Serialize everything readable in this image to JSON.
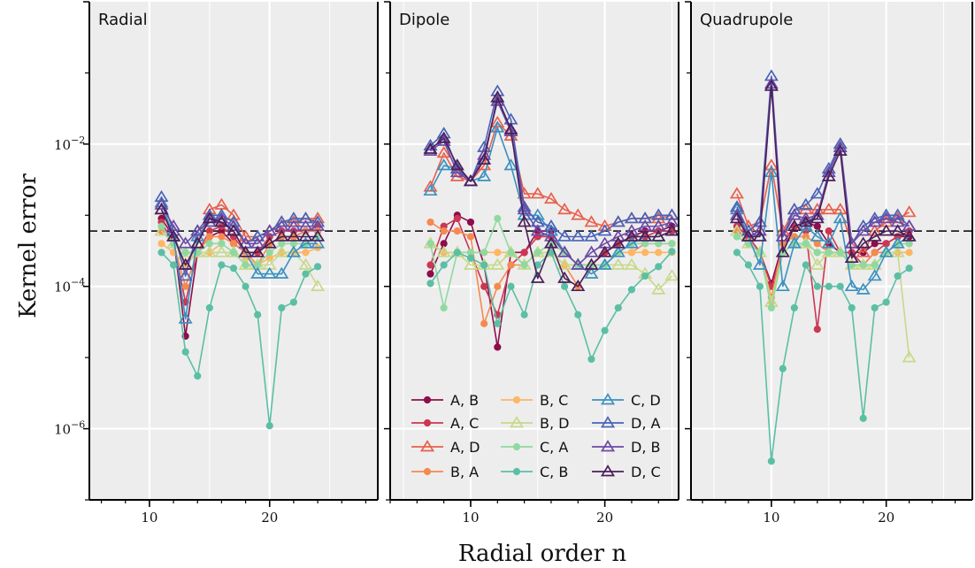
{
  "chart_data": {
    "type": "line",
    "ylabel": "Kernel error",
    "xlabel": "Radial order n",
    "y_scale": "log",
    "ylim": [
      1e-07,
      1
    ],
    "y_ticks": [
      {
        "value": 1e-06,
        "label": "10−6"
      },
      {
        "value": 0.0001,
        "label": "10−4"
      },
      {
        "value": 0.01,
        "label": "10−2"
      }
    ],
    "reference_line": 0.0006,
    "grid": true,
    "legend_position": "bottom-center of middle panel",
    "series_styles": [
      {
        "name": "A, B",
        "color": "#8e0d4b",
        "marker": "circle"
      },
      {
        "name": "A, C",
        "color": "#cc3752",
        "marker": "circle"
      },
      {
        "name": "A, D",
        "color": "#e8604c",
        "marker": "triangle"
      },
      {
        "name": "B, A",
        "color": "#f58a4f",
        "marker": "circle"
      },
      {
        "name": "B, C",
        "color": "#fdb662",
        "marker": "circle"
      },
      {
        "name": "B, D",
        "color": "#c6d98a",
        "marker": "triangle"
      },
      {
        "name": "C, A",
        "color": "#8fd9a0",
        "marker": "circle"
      },
      {
        "name": "C, B",
        "color": "#5bbfa4",
        "marker": "circle"
      },
      {
        "name": "C, D",
        "color": "#3b91c0",
        "marker": "triangle"
      },
      {
        "name": "D, A",
        "color": "#4a62b8",
        "marker": "triangle"
      },
      {
        "name": "D, B",
        "color": "#6c4aa6",
        "marker": "triangle"
      },
      {
        "name": "D, C",
        "color": "#4b1e58",
        "marker": "triangle"
      }
    ],
    "panels": [
      {
        "title": "Radial",
        "xlim": [
          5,
          29
        ],
        "x_ticks": [
          10,
          20
        ],
        "x": [
          11,
          12,
          13,
          14,
          15,
          16,
          17,
          18,
          19,
          20,
          21,
          22,
          23,
          24
        ],
        "series": [
          {
            "name": "A, B",
            "values": [
              0.0009,
              0.0005,
              2e-05,
              0.0003,
              0.0005,
              0.0006,
              0.0004,
              0.0003,
              0.0003,
              0.0004,
              0.0005,
              0.0005,
              0.0006,
              0.0006
            ]
          },
          {
            "name": "A, C",
            "values": [
              0.0008,
              0.0004,
              6e-05,
              0.0003,
              0.0006,
              0.0007,
              0.0005,
              0.0003,
              0.0003,
              0.0005,
              0.0006,
              0.0006,
              0.0006,
              0.0007
            ]
          },
          {
            "name": "A, D",
            "values": [
              0.0012,
              0.0005,
              0.0002,
              0.0004,
              0.0012,
              0.0014,
              0.001,
              0.0005,
              0.0005,
              0.0006,
              0.0008,
              0.0008,
              0.0009,
              0.0009
            ]
          },
          {
            "name": "B, A",
            "values": [
              0.0006,
              0.0004,
              0.0001,
              0.0003,
              0.0005,
              0.0005,
              0.0004,
              0.0003,
              0.0002,
              0.0004,
              0.0005,
              0.0005,
              0.0006,
              0.0006
            ]
          },
          {
            "name": "B, C",
            "values": [
              0.0004,
              0.0003,
              0.0002,
              0.0003,
              0.0003,
              0.0004,
              0.0003,
              0.00025,
              0.0002,
              0.00025,
              0.0003,
              0.0003,
              0.0003,
              0.00035
            ]
          },
          {
            "name": "B, D",
            "values": [
              0.0006,
              0.0004,
              0.0003,
              0.0003,
              0.0003,
              0.0003,
              0.0003,
              0.0002,
              0.0002,
              0.0002,
              0.0003,
              0.0003,
              0.0002,
              0.0001
            ]
          },
          {
            "name": "C, A",
            "values": [
              0.0007,
              0.0004,
              0.0003,
              0.0003,
              0.0004,
              0.0004,
              0.0003,
              0.0002,
              0.0002,
              0.0003,
              0.0004,
              0.0004,
              0.0004,
              0.0005
            ]
          },
          {
            "name": "C, B",
            "values": [
              0.0003,
              0.0002,
              1.2e-05,
              5.5e-06,
              5e-05,
              0.0002,
              0.00018,
              0.0001,
              4e-05,
              1.1e-06,
              5e-05,
              6e-05,
              0.00015,
              0.00019
            ]
          },
          {
            "name": "C, D",
            "values": [
              0.0015,
              0.0005,
              3.5e-05,
              0.0005,
              0.0008,
              0.0008,
              0.0006,
              0.0003,
              0.00015,
              0.00015,
              0.00015,
              0.0003,
              0.0004,
              0.0004
            ]
          },
          {
            "name": "D, A",
            "values": [
              0.0018,
              0.0006,
              0.00014,
              0.0006,
              0.001,
              0.001,
              0.0008,
              0.0004,
              0.0005,
              0.0006,
              0.0008,
              0.0009,
              0.0009,
              0.0008
            ]
          },
          {
            "name": "D, B",
            "values": [
              0.0014,
              0.0007,
              0.0004,
              0.0006,
              0.0008,
              0.0009,
              0.0007,
              0.0004,
              0.0004,
              0.0006,
              0.0007,
              0.0007,
              0.0007,
              0.0007
            ]
          },
          {
            "name": "D, C",
            "values": [
              0.0012,
              0.0005,
              0.0002,
              0.0004,
              0.0009,
              0.0008,
              0.0006,
              0.0003,
              0.0003,
              0.0004,
              0.0005,
              0.0005,
              0.0005,
              0.0005
            ]
          }
        ]
      },
      {
        "title": "Dipole",
        "xlim": [
          4,
          25.5
        ],
        "x_ticks": [
          10,
          20
        ],
        "x": [
          7,
          8,
          9,
          10,
          11,
          12,
          13,
          14,
          15,
          16,
          17,
          18,
          19,
          20,
          21,
          22,
          23,
          24,
          25
        ],
        "series": [
          {
            "name": "A, B",
            "values": [
              0.00015,
              0.0004,
              0.001,
              0.0008,
              0.0002,
              1.4e-05,
              0.0003,
              0.0003,
              0.0006,
              0.0006,
              0.0003,
              0.0002,
              0.0002,
              0.0003,
              0.0004,
              0.0005,
              0.0006,
              0.0006,
              0.0007
            ]
          },
          {
            "name": "A, C",
            "values": [
              0.0002,
              0.0007,
              0.0009,
              0.0003,
              0.0001,
              4e-05,
              0.0002,
              0.0003,
              0.0005,
              0.0005,
              0.0003,
              0.0002,
              0.0002,
              0.0003,
              0.0004,
              0.0005,
              0.0005,
              0.0006,
              0.0006
            ]
          },
          {
            "name": "A, D",
            "values": [
              0.0025,
              0.0075,
              0.0035,
              0.003,
              0.005,
              0.02,
              0.013,
              0.002,
              0.002,
              0.0017,
              0.0012,
              0.001,
              0.0008,
              0.0007,
              0.0008,
              0.0009,
              0.0009,
              0.0009,
              0.001
            ]
          },
          {
            "name": "B, A",
            "values": [
              0.0008,
              0.0006,
              0.0006,
              0.0005,
              3e-05,
              0.0001,
              0.0002,
              0.0002,
              0.0003,
              0.0003,
              0.0002,
              0.0001,
              0.0002,
              0.0002,
              0.0003,
              0.0003,
              0.0004,
              0.0004,
              0.0004
            ]
          },
          {
            "name": "B, C",
            "values": [
              0.0004,
              0.0003,
              0.0003,
              0.0003,
              0.0003,
              0.0003,
              0.0003,
              0.0002,
              0.0003,
              0.0003,
              0.0002,
              0.0002,
              0.0002,
              0.0002,
              0.0003,
              0.0003,
              0.0003,
              0.0003,
              0.0003
            ]
          },
          {
            "name": "B, D",
            "values": [
              0.0004,
              0.0003,
              0.0003,
              0.0002,
              0.0002,
              0.0002,
              0.0003,
              0.0002,
              0.0003,
              0.0003,
              0.0002,
              0.0002,
              0.0002,
              0.0002,
              0.0002,
              0.0002,
              0.00015,
              9e-05,
              0.00014
            ]
          },
          {
            "name": "C, A",
            "values": [
              0.0004,
              5e-05,
              0.0003,
              0.0003,
              0.0003,
              0.0009,
              0.0003,
              0.0002,
              0.0003,
              0.0004,
              0.0003,
              0.0002,
              0.0002,
              0.0002,
              0.0003,
              0.0004,
              0.0004,
              0.0004,
              0.0004
            ]
          },
          {
            "name": "C, B",
            "values": [
              0.00011,
              0.0002,
              0.0003,
              0.00025,
              0.0002,
              3e-05,
              0.0001,
              4e-05,
              0.0002,
              0.0003,
              0.0001,
              4e-05,
              9.5e-06,
              2.4e-05,
              5e-05,
              9e-05,
              0.00014,
              0.00019,
              0.00031
            ]
          },
          {
            "name": "C, D",
            "values": [
              0.0022,
              0.005,
              0.0045,
              0.003,
              0.0035,
              0.017,
              0.005,
              0.001,
              0.001,
              0.0006,
              0.0003,
              0.0002,
              0.00015,
              0.0002,
              0.0003,
              0.0004,
              0.0005,
              0.0005,
              0.0006
            ]
          },
          {
            "name": "D, A",
            "values": [
              0.0095,
              0.014,
              0.0045,
              0.003,
              0.009,
              0.055,
              0.022,
              0.0013,
              0.0008,
              0.0007,
              0.0005,
              0.0005,
              0.0005,
              0.0006,
              0.0008,
              0.0009,
              0.0009,
              0.001,
              0.001
            ]
          },
          {
            "name": "D, B",
            "values": [
              0.008,
              0.011,
              0.004,
              0.003,
              0.007,
              0.04,
              0.015,
              0.0012,
              0.0006,
              0.0005,
              0.0003,
              0.0002,
              0.0003,
              0.0004,
              0.0005,
              0.0006,
              0.0007,
              0.0007,
              0.0008
            ]
          },
          {
            "name": "D, C",
            "values": [
              0.0085,
              0.012,
              0.005,
              0.003,
              0.006,
              0.045,
              0.016,
              0.0008,
              0.00013,
              0.0004,
              0.00013,
              0.0001,
              0.0002,
              0.0003,
              0.0004,
              0.0005,
              0.0005,
              0.0005,
              0.0006
            ]
          }
        ]
      },
      {
        "title": "Quadrupole",
        "xlim": [
          3,
          27.5
        ],
        "x_ticks": [
          10,
          20
        ],
        "x": [
          7,
          8,
          9,
          10,
          11,
          12,
          13,
          14,
          15,
          16,
          17,
          18,
          19,
          20,
          21,
          22
        ],
        "series": [
          {
            "name": "A, B",
            "values": [
              0.0006,
              0.0005,
              0.0003,
              0.00011,
              0.0004,
              0.0007,
              0.0008,
              0.0007,
              0.0004,
              0.0003,
              0.0003,
              0.0003,
              0.0004,
              0.0004,
              0.0005,
              0.0005
            ]
          },
          {
            "name": "A, C",
            "values": [
              0.0007,
              0.0005,
              0.0003,
              0.0001,
              0.0003,
              0.0007,
              0.0006,
              2.5e-05,
              0.0006,
              0.0003,
              0.0003,
              0.0002,
              0.0003,
              0.0004,
              0.0005,
              0.0006
            ]
          },
          {
            "name": "A, D",
            "values": [
              0.002,
              0.0007,
              0.0008,
              0.005,
              0.0006,
              0.0012,
              0.0012,
              0.0012,
              0.0012,
              0.0012,
              0.0004,
              0.0003,
              0.0006,
              0.0008,
              0.0009,
              0.0011
            ]
          },
          {
            "name": "B, A",
            "values": [
              0.0006,
              0.0004,
              0.0003,
              7e-05,
              0.0004,
              0.0005,
              0.0005,
              0.0004,
              0.0003,
              0.0003,
              0.0002,
              0.0002,
              0.0003,
              0.0003,
              0.0004,
              0.0004
            ]
          },
          {
            "name": "B, C",
            "values": [
              0.0005,
              0.0004,
              0.0003,
              6e-05,
              0.0003,
              0.0004,
              0.0004,
              0.0003,
              0.0003,
              0.0003,
              0.0002,
              0.0002,
              0.0002,
              0.0003,
              0.0003,
              0.0003
            ]
          },
          {
            "name": "B, D",
            "values": [
              0.0006,
              0.0004,
              0.0003,
              6e-05,
              0.0003,
              0.0004,
              0.0004,
              0.0002,
              0.0003,
              0.0003,
              0.0002,
              0.0002,
              0.0002,
              0.0003,
              0.0003,
              1e-05
            ]
          },
          {
            "name": "C, A",
            "values": [
              0.0005,
              0.0004,
              0.0003,
              5e-05,
              0.0003,
              0.0004,
              0.0004,
              0.0003,
              0.0003,
              0.0003,
              0.0002,
              0.0002,
              0.0002,
              0.0003,
              0.0004,
              0.0004
            ]
          },
          {
            "name": "C, B",
            "values": [
              0.0003,
              0.0002,
              0.0001,
              3.5e-07,
              7e-06,
              5e-05,
              0.0002,
              0.0001,
              0.0001,
              0.0001,
              5e-05,
              1.4e-06,
              5e-05,
              6e-05,
              0.00014,
              0.00018
            ]
          },
          {
            "name": "C, D",
            "values": [
              0.0012,
              0.0005,
              0.0002,
              0.004,
              0.0001,
              0.0004,
              0.0007,
              0.0005,
              0.0004,
              0.0009,
              0.0001,
              9e-05,
              0.00014,
              0.0003,
              0.0004,
              0.0005
            ]
          },
          {
            "name": "D, A",
            "values": [
              0.0013,
              0.0006,
              0.0008,
              0.09,
              0.0005,
              0.0012,
              0.0014,
              0.002,
              0.0045,
              0.01,
              0.0004,
              0.0007,
              0.0009,
              0.001,
              0.001,
              0.0007
            ]
          },
          {
            "name": "D, B",
            "values": [
              0.001,
              0.0005,
              0.0006,
              0.07,
              0.0005,
              0.001,
              0.0009,
              0.001,
              0.004,
              0.009,
              0.0004,
              0.0006,
              0.0008,
              0.0009,
              0.0008,
              0.0007
            ]
          },
          {
            "name": "D, C",
            "values": [
              0.0009,
              0.0005,
              0.0005,
              0.065,
              0.0003,
              0.0007,
              0.0008,
              0.0009,
              0.0035,
              0.008,
              0.00025,
              0.0004,
              0.0005,
              0.0006,
              0.0006,
              0.0005
            ]
          }
        ]
      }
    ]
  }
}
